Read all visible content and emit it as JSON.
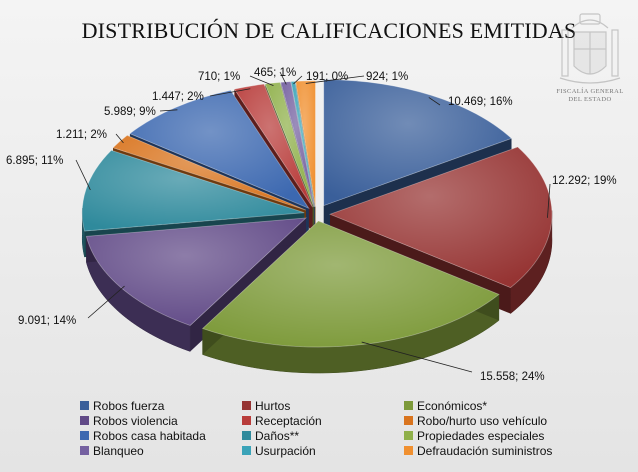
{
  "chart_data": {
    "type": "pie",
    "title": "DISTRIBUCIÓN DE CALIFICACIONES EMITIDAS",
    "legend_position": "bottom",
    "slices": [
      {
        "name": "Robos fuerza",
        "value": 10469,
        "label": "10.469; 16%",
        "color": "#3a5f9a"
      },
      {
        "name": "Hurtos",
        "value": 12292,
        "label": "12.292; 19%",
        "color": "#963433"
      },
      {
        "name": "Económicos*",
        "value": 15558,
        "label": "15.558; 24%",
        "color": "#7d9a3a"
      },
      {
        "name": "Robos violencia",
        "value": 9091,
        "label": "9.091; 14%",
        "color": "#614a87"
      },
      {
        "name": "Daños**",
        "value": 6895,
        "label": "6.895; 11%",
        "color": "#2f8a9c"
      },
      {
        "name": "Robo/hurto uso vehículo",
        "value": 1211,
        "label": "1.211; 2%",
        "color": "#d9741e"
      },
      {
        "name": "Robos casa habitada",
        "value": 5989,
        "label": "5.989; 9%",
        "color": "#3c68b0"
      },
      {
        "name": "Receptación",
        "value": 1447,
        "label": "1.447; 2%",
        "color": "#b83c3a"
      },
      {
        "name": "Propiedades especiales",
        "value": 710,
        "label": "710; 1%",
        "color": "#8fb04a"
      },
      {
        "name": "Blanqueo",
        "value": 465,
        "label": "465; 1%",
        "color": "#7460a0"
      },
      {
        "name": "Usurpación",
        "value": 191,
        "label": "191; 0%",
        "color": "#3aa3b8"
      },
      {
        "name": "Defraudación suministros",
        "value": 924,
        "label": "924; 1%",
        "color": "#f09030"
      }
    ]
  },
  "watermark": {
    "line1": "FISCALÍA GENERAL",
    "line2": "DEL ESTADO"
  },
  "legend_order": [
    0,
    1,
    2,
    3,
    7,
    5,
    6,
    4,
    8,
    9,
    10,
    11
  ]
}
